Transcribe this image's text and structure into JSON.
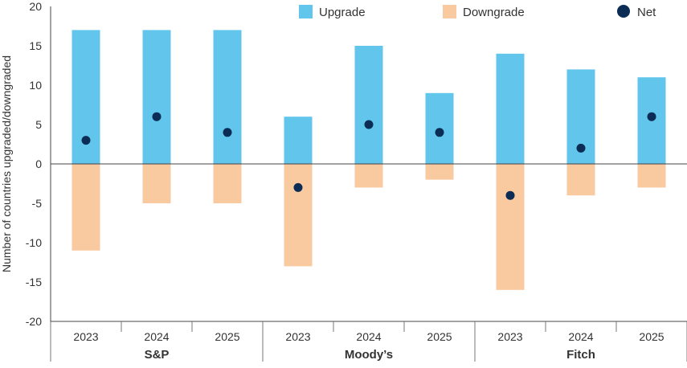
{
  "chart_data": {
    "type": "bar",
    "ylabel": "Number of countries upgraded/downgraded",
    "ylim": [
      -20,
      20
    ],
    "yticks": [
      20,
      15,
      10,
      5,
      0,
      -5,
      -10,
      -15,
      -20
    ],
    "grid": false,
    "legend_position": "top",
    "groups": [
      {
        "label": "S&P",
        "categories": [
          "2023",
          "2024",
          "2025"
        ]
      },
      {
        "label": "Moody’s",
        "categories": [
          "2023",
          "2024",
          "2025"
        ]
      },
      {
        "label": "Fitch",
        "categories": [
          "2023",
          "2024",
          "2025"
        ]
      }
    ],
    "series": [
      {
        "name": "Upgrade",
        "kind": "bar",
        "color": "#62c6ec",
        "values": [
          17,
          17,
          17,
          6,
          15,
          9,
          14,
          12,
          11
        ]
      },
      {
        "name": "Downgrade",
        "kind": "bar",
        "color": "#f9c9a0",
        "values": [
          -11,
          -5,
          -5,
          -13,
          -3,
          -2,
          -16,
          -4,
          -3
        ]
      },
      {
        "name": "Net",
        "kind": "dot",
        "color": "#0b2d55",
        "values": [
          3,
          6,
          4,
          -3,
          5,
          4,
          -4,
          2,
          6
        ]
      }
    ]
  }
}
